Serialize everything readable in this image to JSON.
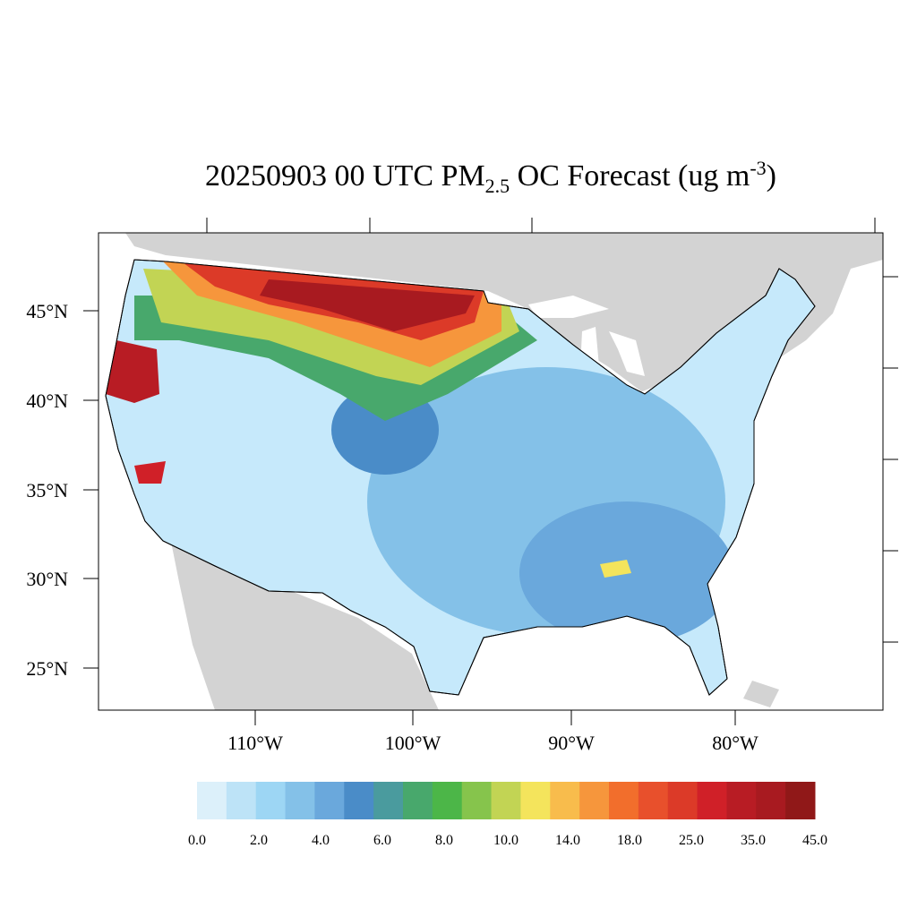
{
  "title": {
    "main": "20250903 00 UTC PM",
    "sub": "2.5",
    "rest": " OC Forecast (ug m",
    "sup": "-3",
    "end": ")"
  },
  "lat_labels": [
    "45°N",
    "40°N",
    "35°N",
    "30°N",
    "25°N"
  ],
  "lon_labels": [
    "110°W",
    "100°W",
    "90°W",
    "80°W"
  ],
  "colorbar": {
    "labels": [
      "0.0",
      "2.0",
      "4.0",
      "6.0",
      "8.0",
      "10.0",
      "14.0",
      "18.0",
      "25.0",
      "35.0",
      "45.0"
    ],
    "colors": [
      "#dcf0fa",
      "#bde3f7",
      "#9dd6f4",
      "#84c1e8",
      "#6aa8dc",
      "#4a8cc8",
      "#4a9b9e",
      "#48a86c",
      "#4cb648",
      "#86c44c",
      "#c2d454",
      "#f4e45c",
      "#f8bc4c",
      "#f6963c",
      "#f26e2c",
      "#e8502c",
      "#dc3a28",
      "#d02028",
      "#b81c24",
      "#a81a20",
      "#901818"
    ]
  }
}
